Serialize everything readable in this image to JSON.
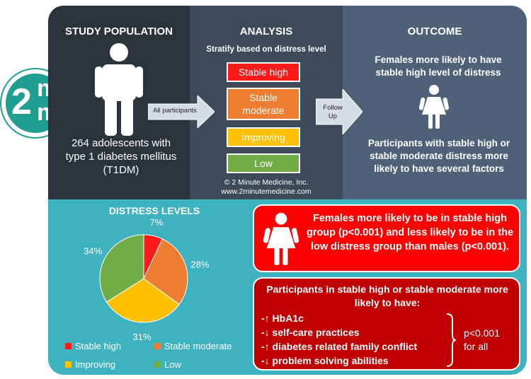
{
  "logo": {
    "text_top": "m",
    "text_left": "2",
    "text_bottom": "m"
  },
  "study": {
    "title": "STUDY POPULATION",
    "description": "264 adolescents with type 1 diabetes mellitus (T1DM)"
  },
  "analysis": {
    "title": "ANALYSIS",
    "subtitle": "Stratify based on distress level",
    "levels": [
      {
        "label": "Stable high",
        "color": "#ff1a1a"
      },
      {
        "label": "Stable moderate",
        "color": "#ed7d31"
      },
      {
        "label": "Improving",
        "color": "#ffc000"
      },
      {
        "label": "Low",
        "color": "#70ad47"
      }
    ],
    "copyright": "© 2 Minute Medicine, Inc.",
    "website": "www.2minutemedicine.com"
  },
  "arrows": {
    "all_participants": "All participants",
    "follow_up": "Follow Up"
  },
  "outcome": {
    "title": "OUTCOME",
    "finding1": "Females more likely to have stable high level of distress",
    "finding2": "Participants with stable high or stable moderate distress more likely to have several factors"
  },
  "distress_chart": {
    "title": "DISTRESS LEVELS"
  },
  "chart_data": {
    "type": "pie",
    "title": "DISTRESS LEVELS",
    "categories": [
      "Stable high",
      "Stable moderate",
      "Improving",
      "Low"
    ],
    "values": [
      7,
      28,
      31,
      34
    ],
    "labels": [
      "7%",
      "28%",
      "31%",
      "34%"
    ],
    "colors": [
      "#ff1a1a",
      "#ed7d31",
      "#ffc000",
      "#70ad47"
    ],
    "legend_position": "bottom"
  },
  "female_box": {
    "text": "Females more likely to be in stable high group (p<0.001) and less likely to be in the low distress group than males (p<0.001)."
  },
  "factors_box": {
    "title": "Participants in stable high or stable moderate more likely to have:",
    "items": [
      "-↑ HbA1c",
      "-↓ self-care practices",
      "-↑ diabetes related family conflict",
      "-↓ problem solving abilities"
    ],
    "pvalue": "p<0.001 for all"
  }
}
